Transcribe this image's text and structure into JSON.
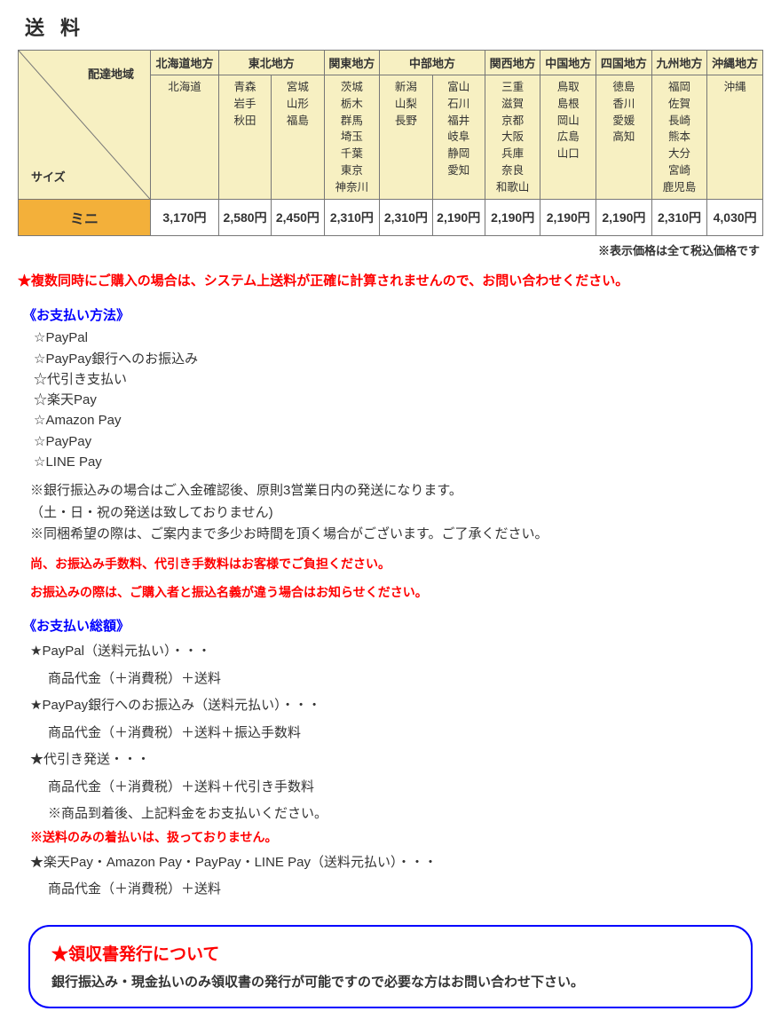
{
  "title": "送料",
  "table": {
    "corner_top": "配達地域",
    "corner_bottom": "サイズ",
    "regions": [
      "北海道地方",
      "東北地方",
      "関東地方",
      "中部地方",
      "関西地方",
      "中国地方",
      "四国地方",
      "九州地方",
      "沖縄地方"
    ],
    "region_colspan": [
      1,
      2,
      1,
      2,
      1,
      1,
      1,
      1,
      1
    ],
    "pref_cells": [
      "北海道",
      "青森\n岩手\n秋田",
      "宮城\n山形\n福島",
      "茨城\n栃木\n群馬\n埼玉\n千葉\n東京\n神奈川",
      "新潟\n山梨\n長野",
      "富山\n石川\n福井\n岐阜\n静岡\n愛知",
      "三重\n滋賀\n京都\n大阪\n兵庫\n奈良\n和歌山",
      "鳥取\n島根\n岡山\n広島\n山口",
      "徳島\n香川\n愛媛\n高知",
      "福岡\n佐賀\n長崎\n熊本\n大分\n宮崎\n鹿児島",
      "沖縄"
    ],
    "size_label": "ミニ",
    "prices": [
      "3,170円",
      "2,580円",
      "2,450円",
      "2,310円",
      "2,310円",
      "2,190円",
      "2,190円",
      "2,190円",
      "2,190円",
      "2,310円",
      "4,030円"
    ]
  },
  "price_note": "※表示価格は全て税込価格です",
  "multi_note": "★複数同時にご購入の場合は、システム上送料が正確に計算されませんので、お問い合わせください。",
  "pay_title": "《お支払い方法》",
  "pay_methods": [
    "☆PayPal",
    "☆PayPay銀行へのお振込み",
    "☆代引き支払い",
    "☆楽天Pay",
    "☆Amazon Pay",
    "☆PayPay",
    "☆LINE Pay"
  ],
  "pay_notes": [
    "※銀行振込みの場合はご入金確認後、原則3営業日内の発送になります。",
    "（土・日・祝の発送は致しておりません)",
    "※同梱希望の際は、ご案内まで多少お時間を頂く場合がございます。ご了承ください。"
  ],
  "pay_red": [
    "尚、お振込み手数料、代引き手数料はお客様でご負担ください。",
    "お振込みの際は、ご購入者と振込名義が違う場合はお知らせください。"
  ],
  "total_title": "《お支払い総額》",
  "totals": [
    {
      "h": "★PayPal（送料元払い）・・・",
      "s": [
        "商品代金（＋消費税）＋送料"
      ]
    },
    {
      "h": "★PayPay銀行へのお振込み（送料元払い）・・・",
      "s": [
        "商品代金（＋消費税）＋送料＋振込手数料"
      ]
    },
    {
      "h": "★代引き発送・・・",
      "s": [
        "商品代金（＋消費税）＋送料＋代引き手数料",
        "※商品到着後、上記料金をお支払いください。"
      ]
    }
  ],
  "totals_red": "※送料のみの着払いは、扱っておりません。",
  "totals2": [
    {
      "h": "★楽天Pay・Amazon Pay・PayPay・LINE Pay（送料元払い）・・・",
      "s": [
        "商品代金（＋消費税）＋送料"
      ]
    }
  ],
  "receipt": {
    "title": "★領収書発行について",
    "body": "銀行振込み・現金払いのみ領収書の発行が可能ですので必要な方はお問い合わせ下さい。"
  }
}
